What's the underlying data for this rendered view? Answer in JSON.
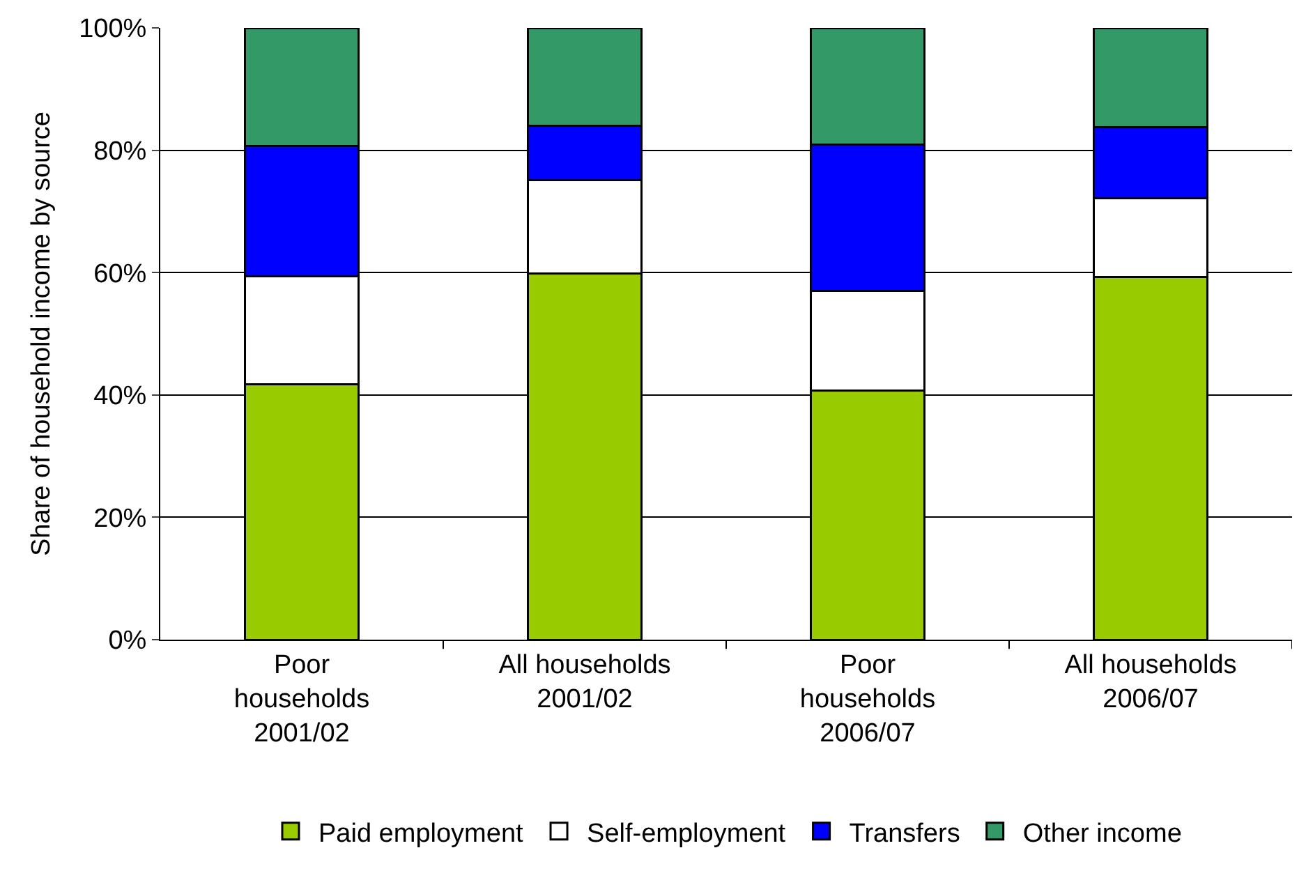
{
  "chart_data": {
    "type": "bar",
    "stacked": true,
    "ylabel": "Share of household income by source",
    "categories": [
      "Poor\nhouseholds\n2001/02",
      "All households\n2001/02",
      "Poor\nhouseholds\n2006/07",
      "All households\n2006/07"
    ],
    "series": [
      {
        "name": "Paid employment",
        "color": "#99cc00",
        "values": [
          41.8,
          59.9,
          40.7,
          59.3
        ]
      },
      {
        "name": "Self-employment",
        "color": "#ffffff",
        "values": [
          17.6,
          15.2,
          16.3,
          12.9
        ]
      },
      {
        "name": "Transfers",
        "color": "#0000ff",
        "values": [
          21.3,
          8.9,
          23.9,
          11.6
        ]
      },
      {
        "name": "Other income",
        "color": "#339966",
        "values": [
          19.3,
          16.0,
          19.1,
          16.2
        ]
      }
    ],
    "ylim": [
      0,
      100
    ],
    "yticks": [
      {
        "value": 0,
        "label": "0%"
      },
      {
        "value": 20,
        "label": "20%"
      },
      {
        "value": 40,
        "label": "40%"
      },
      {
        "value": 60,
        "label": "60%"
      },
      {
        "value": 80,
        "label": "80%"
      },
      {
        "value": 100,
        "label": "100%"
      }
    ],
    "grid": "y",
    "legend": "bottom"
  }
}
